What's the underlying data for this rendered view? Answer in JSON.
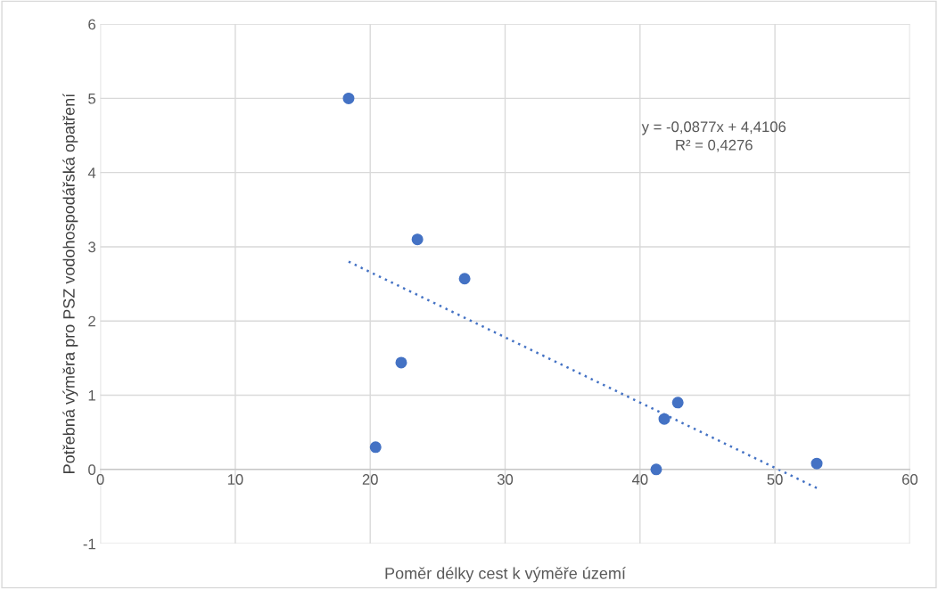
{
  "chart_data": {
    "type": "scatter",
    "xlabel": "Poměr délky cest k výměře území",
    "ylabel": "Potřebná výměra pro PSZ vodohospodářská opatření",
    "x": [
      18.4,
      23.5,
      27.0,
      22.3,
      20.4,
      41.2,
      41.8,
      42.8,
      53.1
    ],
    "series": [
      {
        "color": "#4472c4",
        "values": [
          5.0,
          3.1,
          2.57,
          1.44,
          0.3,
          0.0,
          0.68,
          0.9,
          0.08
        ],
        "marker": "circle"
      },
      {
        "type": "line",
        "color": "#4472c4",
        "x": [
          18.4,
          53.1
        ],
        "values": [
          2.8,
          -0.25
        ],
        "line_style": "dotted",
        "marker": "none"
      }
    ],
    "annotations": [
      "y = -0,0877x + 4,4106",
      "R² = 0,4276"
    ],
    "xlim": [
      0,
      60
    ],
    "xticks": [
      0,
      10,
      20,
      30,
      40,
      50,
      60
    ],
    "ylim": [
      -1,
      6
    ],
    "yticks": [
      -1,
      0,
      1,
      2,
      3,
      4,
      5,
      6
    ],
    "grid": true,
    "legend": false
  }
}
